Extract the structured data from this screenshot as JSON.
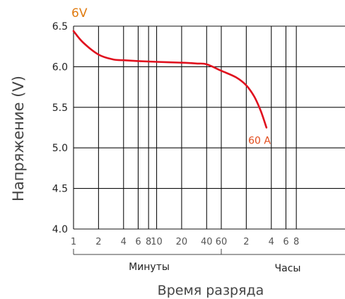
{
  "chart_data": {
    "type": "line",
    "title": "6V",
    "ylabel": "Напряжение (V)",
    "xlabel": "Время разряда",
    "ylim": [
      4.0,
      6.5
    ],
    "yticks": [
      "4.0",
      "4.5",
      "5.0",
      "5.5",
      "6.0",
      "6.5"
    ],
    "xticks": [
      "1",
      "2",
      "4",
      "6",
      "8",
      "10",
      "20",
      "40",
      "60",
      "2",
      "4",
      "6",
      "8"
    ],
    "x_groups": [
      {
        "label": "Минуты",
        "range": [
          "1",
          "60"
        ]
      },
      {
        "label": "Часы",
        "range": [
          "60",
          "8"
        ]
      }
    ],
    "x_scale": "log",
    "grid": true,
    "series": [
      {
        "name": "60 A",
        "color": "#e0101e",
        "label_color": "#e24a1a",
        "points": [
          {
            "t": "1 мин",
            "v": 6.44
          },
          {
            "t": "1.3 мин",
            "v": 6.3
          },
          {
            "t": "2 мин",
            "v": 6.15
          },
          {
            "t": "3 мин",
            "v": 6.09
          },
          {
            "t": "4 мин",
            "v": 6.08
          },
          {
            "t": "6 мин",
            "v": 6.07
          },
          {
            "t": "10 мин",
            "v": 6.06
          },
          {
            "t": "20 мин",
            "v": 6.05
          },
          {
            "t": "30 мин",
            "v": 6.04
          },
          {
            "t": "40 мин",
            "v": 6.03
          },
          {
            "t": "60 мин",
            "v": 5.95
          },
          {
            "t": "1.5 ч",
            "v": 5.87
          },
          {
            "t": "2 ч",
            "v": 5.77
          },
          {
            "t": "2.5 ч",
            "v": 5.63
          },
          {
            "t": "3 ч",
            "v": 5.45
          },
          {
            "t": "3.5 ч",
            "v": 5.25
          }
        ]
      }
    ]
  }
}
